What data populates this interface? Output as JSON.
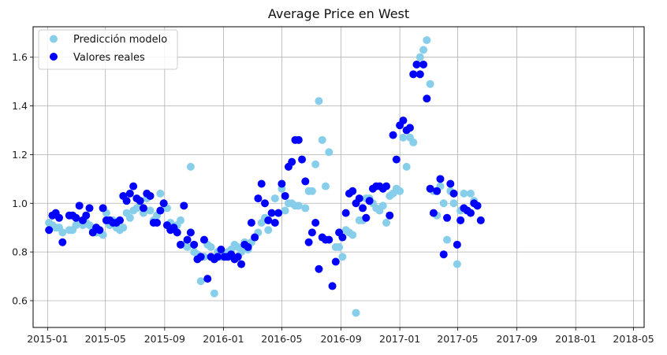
{
  "colors": {
    "predicted": "#87ceeb",
    "actual": "#0000ff",
    "grid": "#b0b0b0",
    "axis": "#000000"
  },
  "chart_data": {
    "type": "scatter",
    "title": "Average Price en West",
    "xlabel": "",
    "ylabel": "",
    "x_axis_type": "date",
    "xlim": [
      "2014-12-02",
      "2018-05-23"
    ],
    "ylim": [
      0.49,
      1.725
    ],
    "x_ticks": [
      "2015-01",
      "2015-05",
      "2015-09",
      "2016-01",
      "2016-05",
      "2016-09",
      "2017-01",
      "2017-05",
      "2017-09",
      "2018-01",
      "2018-05"
    ],
    "y_ticks": [
      "0.6",
      "0.8",
      "1.0",
      "1.2",
      "1.4",
      "1.6"
    ],
    "grid": true,
    "legend_position": "top-left",
    "series": [
      {
        "name": "Predicción modelo",
        "color_key": "predicted",
        "points": [
          [
            "2015-01-04",
            0.92
          ],
          [
            "2015-01-11",
            0.91
          ],
          [
            "2015-01-18",
            0.9
          ],
          [
            "2015-01-25",
            0.9
          ],
          [
            "2015-02-01",
            0.88
          ],
          [
            "2015-02-15",
            0.89
          ],
          [
            "2015-02-22",
            0.89
          ],
          [
            "2015-03-01",
            0.91
          ],
          [
            "2015-03-08",
            0.92
          ],
          [
            "2015-03-15",
            0.91
          ],
          [
            "2015-03-22",
            0.92
          ],
          [
            "2015-03-29",
            0.91
          ],
          [
            "2015-04-05",
            0.89
          ],
          [
            "2015-04-12",
            0.88
          ],
          [
            "2015-04-19",
            0.88
          ],
          [
            "2015-04-26",
            0.87
          ],
          [
            "2015-05-03",
            0.96
          ],
          [
            "2015-05-10",
            0.91
          ],
          [
            "2015-05-17",
            0.93
          ],
          [
            "2015-05-24",
            0.9
          ],
          [
            "2015-05-31",
            0.89
          ],
          [
            "2015-06-07",
            0.9
          ],
          [
            "2015-06-14",
            0.96
          ],
          [
            "2015-06-21",
            0.94
          ],
          [
            "2015-06-28",
            0.97
          ],
          [
            "2015-07-05",
            0.98
          ],
          [
            "2015-07-12",
            0.99
          ],
          [
            "2015-07-19",
            0.96
          ],
          [
            "2015-07-26",
            1.02
          ],
          [
            "2015-08-02",
            0.97
          ],
          [
            "2015-08-09",
            0.93
          ],
          [
            "2015-08-16",
            0.95
          ],
          [
            "2015-08-23",
            1.04
          ],
          [
            "2015-08-30",
            1.0
          ],
          [
            "2015-09-06",
            0.98
          ],
          [
            "2015-09-13",
            0.92
          ],
          [
            "2015-09-20",
            0.9
          ],
          [
            "2015-09-27",
            0.91
          ],
          [
            "2015-10-04",
            0.93
          ],
          [
            "2015-10-11",
            0.83
          ],
          [
            "2015-10-18",
            0.82
          ],
          [
            "2015-10-25",
            1.15
          ],
          [
            "2015-11-01",
            0.8
          ],
          [
            "2015-11-08",
            0.79
          ],
          [
            "2015-11-15",
            0.68
          ],
          [
            "2015-11-22",
            0.78
          ],
          [
            "2015-11-29",
            0.83
          ],
          [
            "2015-12-06",
            0.82
          ],
          [
            "2015-12-13",
            0.63
          ],
          [
            "2015-12-20",
            0.8
          ],
          [
            "2015-12-27",
            0.78
          ],
          [
            "2016-01-03",
            0.79
          ],
          [
            "2016-01-10",
            0.8
          ],
          [
            "2016-01-17",
            0.81
          ],
          [
            "2016-01-24",
            0.83
          ],
          [
            "2016-01-31",
            0.82
          ],
          [
            "2016-02-07",
            0.8
          ],
          [
            "2016-02-14",
            0.84
          ],
          [
            "2016-02-21",
            0.81
          ],
          [
            "2016-02-28",
            0.84
          ],
          [
            "2016-03-06",
            0.86
          ],
          [
            "2016-03-13",
            0.88
          ],
          [
            "2016-03-20",
            0.92
          ],
          [
            "2016-03-27",
            0.94
          ],
          [
            "2016-04-03",
            0.89
          ],
          [
            "2016-04-17",
            1.02
          ],
          [
            "2016-05-01",
            1.06
          ],
          [
            "2016-05-08",
            0.97
          ],
          [
            "2016-05-15",
            1.0
          ],
          [
            "2016-05-22",
            1.0
          ],
          [
            "2016-05-29",
            0.99
          ],
          [
            "2016-06-05",
            0.99
          ],
          [
            "2016-06-19",
            0.98
          ],
          [
            "2016-06-26",
            1.05
          ],
          [
            "2016-07-03",
            1.05
          ],
          [
            "2016-07-10",
            1.16
          ],
          [
            "2016-07-17",
            1.42
          ],
          [
            "2016-07-24",
            1.26
          ],
          [
            "2016-07-31",
            1.07
          ],
          [
            "2016-08-07",
            1.21
          ],
          [
            "2016-08-21",
            0.82
          ],
          [
            "2016-08-28",
            0.82
          ],
          [
            "2016-09-04",
            0.78
          ],
          [
            "2016-09-11",
            0.89
          ],
          [
            "2016-09-18",
            0.88
          ],
          [
            "2016-09-25",
            0.87
          ],
          [
            "2016-10-02",
            0.55
          ],
          [
            "2016-10-09",
            0.93
          ],
          [
            "2016-10-16",
            0.93
          ],
          [
            "2016-10-23",
            1.02
          ],
          [
            "2016-10-30",
            1.02
          ],
          [
            "2016-11-06",
            1.0
          ],
          [
            "2016-11-13",
            0.98
          ],
          [
            "2016-11-20",
            0.97
          ],
          [
            "2016-11-27",
            0.99
          ],
          [
            "2016-12-04",
            0.92
          ],
          [
            "2016-12-11",
            1.03
          ],
          [
            "2016-12-18",
            1.04
          ],
          [
            "2016-12-25",
            1.06
          ],
          [
            "2017-01-01",
            1.05
          ],
          [
            "2017-01-08",
            1.27
          ],
          [
            "2017-01-15",
            1.15
          ],
          [
            "2017-01-22",
            1.27
          ],
          [
            "2017-01-29",
            1.25
          ],
          [
            "2017-02-05",
            1.57
          ],
          [
            "2017-02-12",
            1.6
          ],
          [
            "2017-02-19",
            1.63
          ],
          [
            "2017-02-26",
            1.67
          ],
          [
            "2017-03-05",
            1.49
          ],
          [
            "2017-03-12",
            1.05
          ],
          [
            "2017-03-19",
            0.95
          ],
          [
            "2017-03-26",
            1.07
          ],
          [
            "2017-04-02",
            1.0
          ],
          [
            "2017-04-09",
            0.85
          ],
          [
            "2017-04-16",
            1.05
          ],
          [
            "2017-04-23",
            1.0
          ],
          [
            "2017-04-30",
            0.75
          ],
          [
            "2017-05-07",
            0.97
          ],
          [
            "2017-05-14",
            1.04
          ],
          [
            "2017-05-21",
            0.97
          ],
          [
            "2017-05-28",
            1.04
          ],
          [
            "2017-06-04",
            1.01
          ],
          [
            "2017-06-11",
            0.99
          ]
        ]
      },
      {
        "name": "Valores reales",
        "color_key": "actual",
        "points": [
          [
            "2015-01-04",
            0.89
          ],
          [
            "2015-01-11",
            0.95
          ],
          [
            "2015-01-18",
            0.96
          ],
          [
            "2015-01-25",
            0.94
          ],
          [
            "2015-02-01",
            0.84
          ],
          [
            "2015-02-15",
            0.95
          ],
          [
            "2015-02-22",
            0.95
          ],
          [
            "2015-03-01",
            0.94
          ],
          [
            "2015-03-08",
            0.99
          ],
          [
            "2015-03-15",
            0.93
          ],
          [
            "2015-03-22",
            0.95
          ],
          [
            "2015-03-29",
            0.98
          ],
          [
            "2015-04-05",
            0.88
          ],
          [
            "2015-04-12",
            0.9
          ],
          [
            "2015-04-19",
            0.89
          ],
          [
            "2015-04-26",
            0.98
          ],
          [
            "2015-05-03",
            0.93
          ],
          [
            "2015-05-10",
            0.93
          ],
          [
            "2015-05-17",
            0.92
          ],
          [
            "2015-05-24",
            0.92
          ],
          [
            "2015-05-31",
            0.93
          ],
          [
            "2015-06-07",
            1.03
          ],
          [
            "2015-06-14",
            1.01
          ],
          [
            "2015-06-21",
            1.04
          ],
          [
            "2015-06-28",
            1.07
          ],
          [
            "2015-07-05",
            1.02
          ],
          [
            "2015-07-12",
            1.01
          ],
          [
            "2015-07-19",
            0.98
          ],
          [
            "2015-07-26",
            1.04
          ],
          [
            "2015-08-02",
            1.03
          ],
          [
            "2015-08-09",
            0.92
          ],
          [
            "2015-08-16",
            0.92
          ],
          [
            "2015-08-23",
            0.97
          ],
          [
            "2015-08-30",
            1.0
          ],
          [
            "2015-09-06",
            0.91
          ],
          [
            "2015-09-13",
            0.89
          ],
          [
            "2015-09-20",
            0.9
          ],
          [
            "2015-09-27",
            0.88
          ],
          [
            "2015-10-04",
            0.83
          ],
          [
            "2015-10-11",
            0.99
          ],
          [
            "2015-10-18",
            0.85
          ],
          [
            "2015-10-25",
            0.88
          ],
          [
            "2015-11-01",
            0.83
          ],
          [
            "2015-11-08",
            0.77
          ],
          [
            "2015-11-15",
            0.78
          ],
          [
            "2015-11-22",
            0.85
          ],
          [
            "2015-11-29",
            0.69
          ],
          [
            "2015-12-06",
            0.78
          ],
          [
            "2015-12-13",
            0.77
          ],
          [
            "2015-12-20",
            0.78
          ],
          [
            "2015-12-27",
            0.81
          ],
          [
            "2016-01-03",
            0.78
          ],
          [
            "2016-01-10",
            0.78
          ],
          [
            "2016-01-17",
            0.79
          ],
          [
            "2016-01-24",
            0.77
          ],
          [
            "2016-01-31",
            0.78
          ],
          [
            "2016-02-07",
            0.75
          ],
          [
            "2016-02-14",
            0.83
          ],
          [
            "2016-02-21",
            0.82
          ],
          [
            "2016-02-28",
            0.92
          ],
          [
            "2016-03-06",
            0.86
          ],
          [
            "2016-03-13",
            1.02
          ],
          [
            "2016-03-20",
            1.08
          ],
          [
            "2016-03-27",
            1.0
          ],
          [
            "2016-04-03",
            0.93
          ],
          [
            "2016-04-10",
            0.96
          ],
          [
            "2016-04-17",
            0.92
          ],
          [
            "2016-04-24",
            0.96
          ],
          [
            "2016-05-01",
            1.08
          ],
          [
            "2016-05-08",
            1.03
          ],
          [
            "2016-05-15",
            1.15
          ],
          [
            "2016-05-22",
            1.17
          ],
          [
            "2016-05-29",
            1.26
          ],
          [
            "2016-06-05",
            1.26
          ],
          [
            "2016-06-12",
            1.18
          ],
          [
            "2016-06-19",
            1.09
          ],
          [
            "2016-06-26",
            0.84
          ],
          [
            "2016-07-03",
            0.88
          ],
          [
            "2016-07-10",
            0.92
          ],
          [
            "2016-07-17",
            0.73
          ],
          [
            "2016-07-24",
            0.86
          ],
          [
            "2016-07-31",
            0.85
          ],
          [
            "2016-08-07",
            0.85
          ],
          [
            "2016-08-14",
            0.66
          ],
          [
            "2016-08-21",
            0.76
          ],
          [
            "2016-08-28",
            0.88
          ],
          [
            "2016-09-04",
            0.86
          ],
          [
            "2016-09-11",
            0.96
          ],
          [
            "2016-09-18",
            1.04
          ],
          [
            "2016-09-25",
            1.05
          ],
          [
            "2016-10-02",
            1.0
          ],
          [
            "2016-10-09",
            1.02
          ],
          [
            "2016-10-16",
            0.98
          ],
          [
            "2016-10-23",
            0.94
          ],
          [
            "2016-10-30",
            1.01
          ],
          [
            "2016-11-06",
            1.06
          ],
          [
            "2016-11-13",
            1.07
          ],
          [
            "2016-11-20",
            1.07
          ],
          [
            "2016-11-27",
            1.06
          ],
          [
            "2016-12-04",
            1.07
          ],
          [
            "2016-12-11",
            0.95
          ],
          [
            "2016-12-18",
            1.28
          ],
          [
            "2016-12-25",
            1.18
          ],
          [
            "2017-01-01",
            1.32
          ],
          [
            "2017-01-08",
            1.34
          ],
          [
            "2017-01-15",
            1.3
          ],
          [
            "2017-01-22",
            1.31
          ],
          [
            "2017-01-29",
            1.53
          ],
          [
            "2017-02-05",
            1.57
          ],
          [
            "2017-02-12",
            1.53
          ],
          [
            "2017-02-19",
            1.57
          ],
          [
            "2017-02-26",
            1.43
          ],
          [
            "2017-03-05",
            1.06
          ],
          [
            "2017-03-12",
            0.96
          ],
          [
            "2017-03-19",
            1.05
          ],
          [
            "2017-03-26",
            1.1
          ],
          [
            "2017-04-02",
            0.79
          ],
          [
            "2017-04-09",
            0.94
          ],
          [
            "2017-04-16",
            1.08
          ],
          [
            "2017-04-23",
            1.04
          ],
          [
            "2017-04-30",
            0.83
          ],
          [
            "2017-05-07",
            0.93
          ],
          [
            "2017-05-14",
            0.98
          ],
          [
            "2017-05-21",
            0.97
          ],
          [
            "2017-05-28",
            0.96
          ],
          [
            "2017-06-04",
            1.0
          ],
          [
            "2017-06-11",
            0.99
          ],
          [
            "2017-06-18",
            0.93
          ]
        ]
      }
    ]
  }
}
